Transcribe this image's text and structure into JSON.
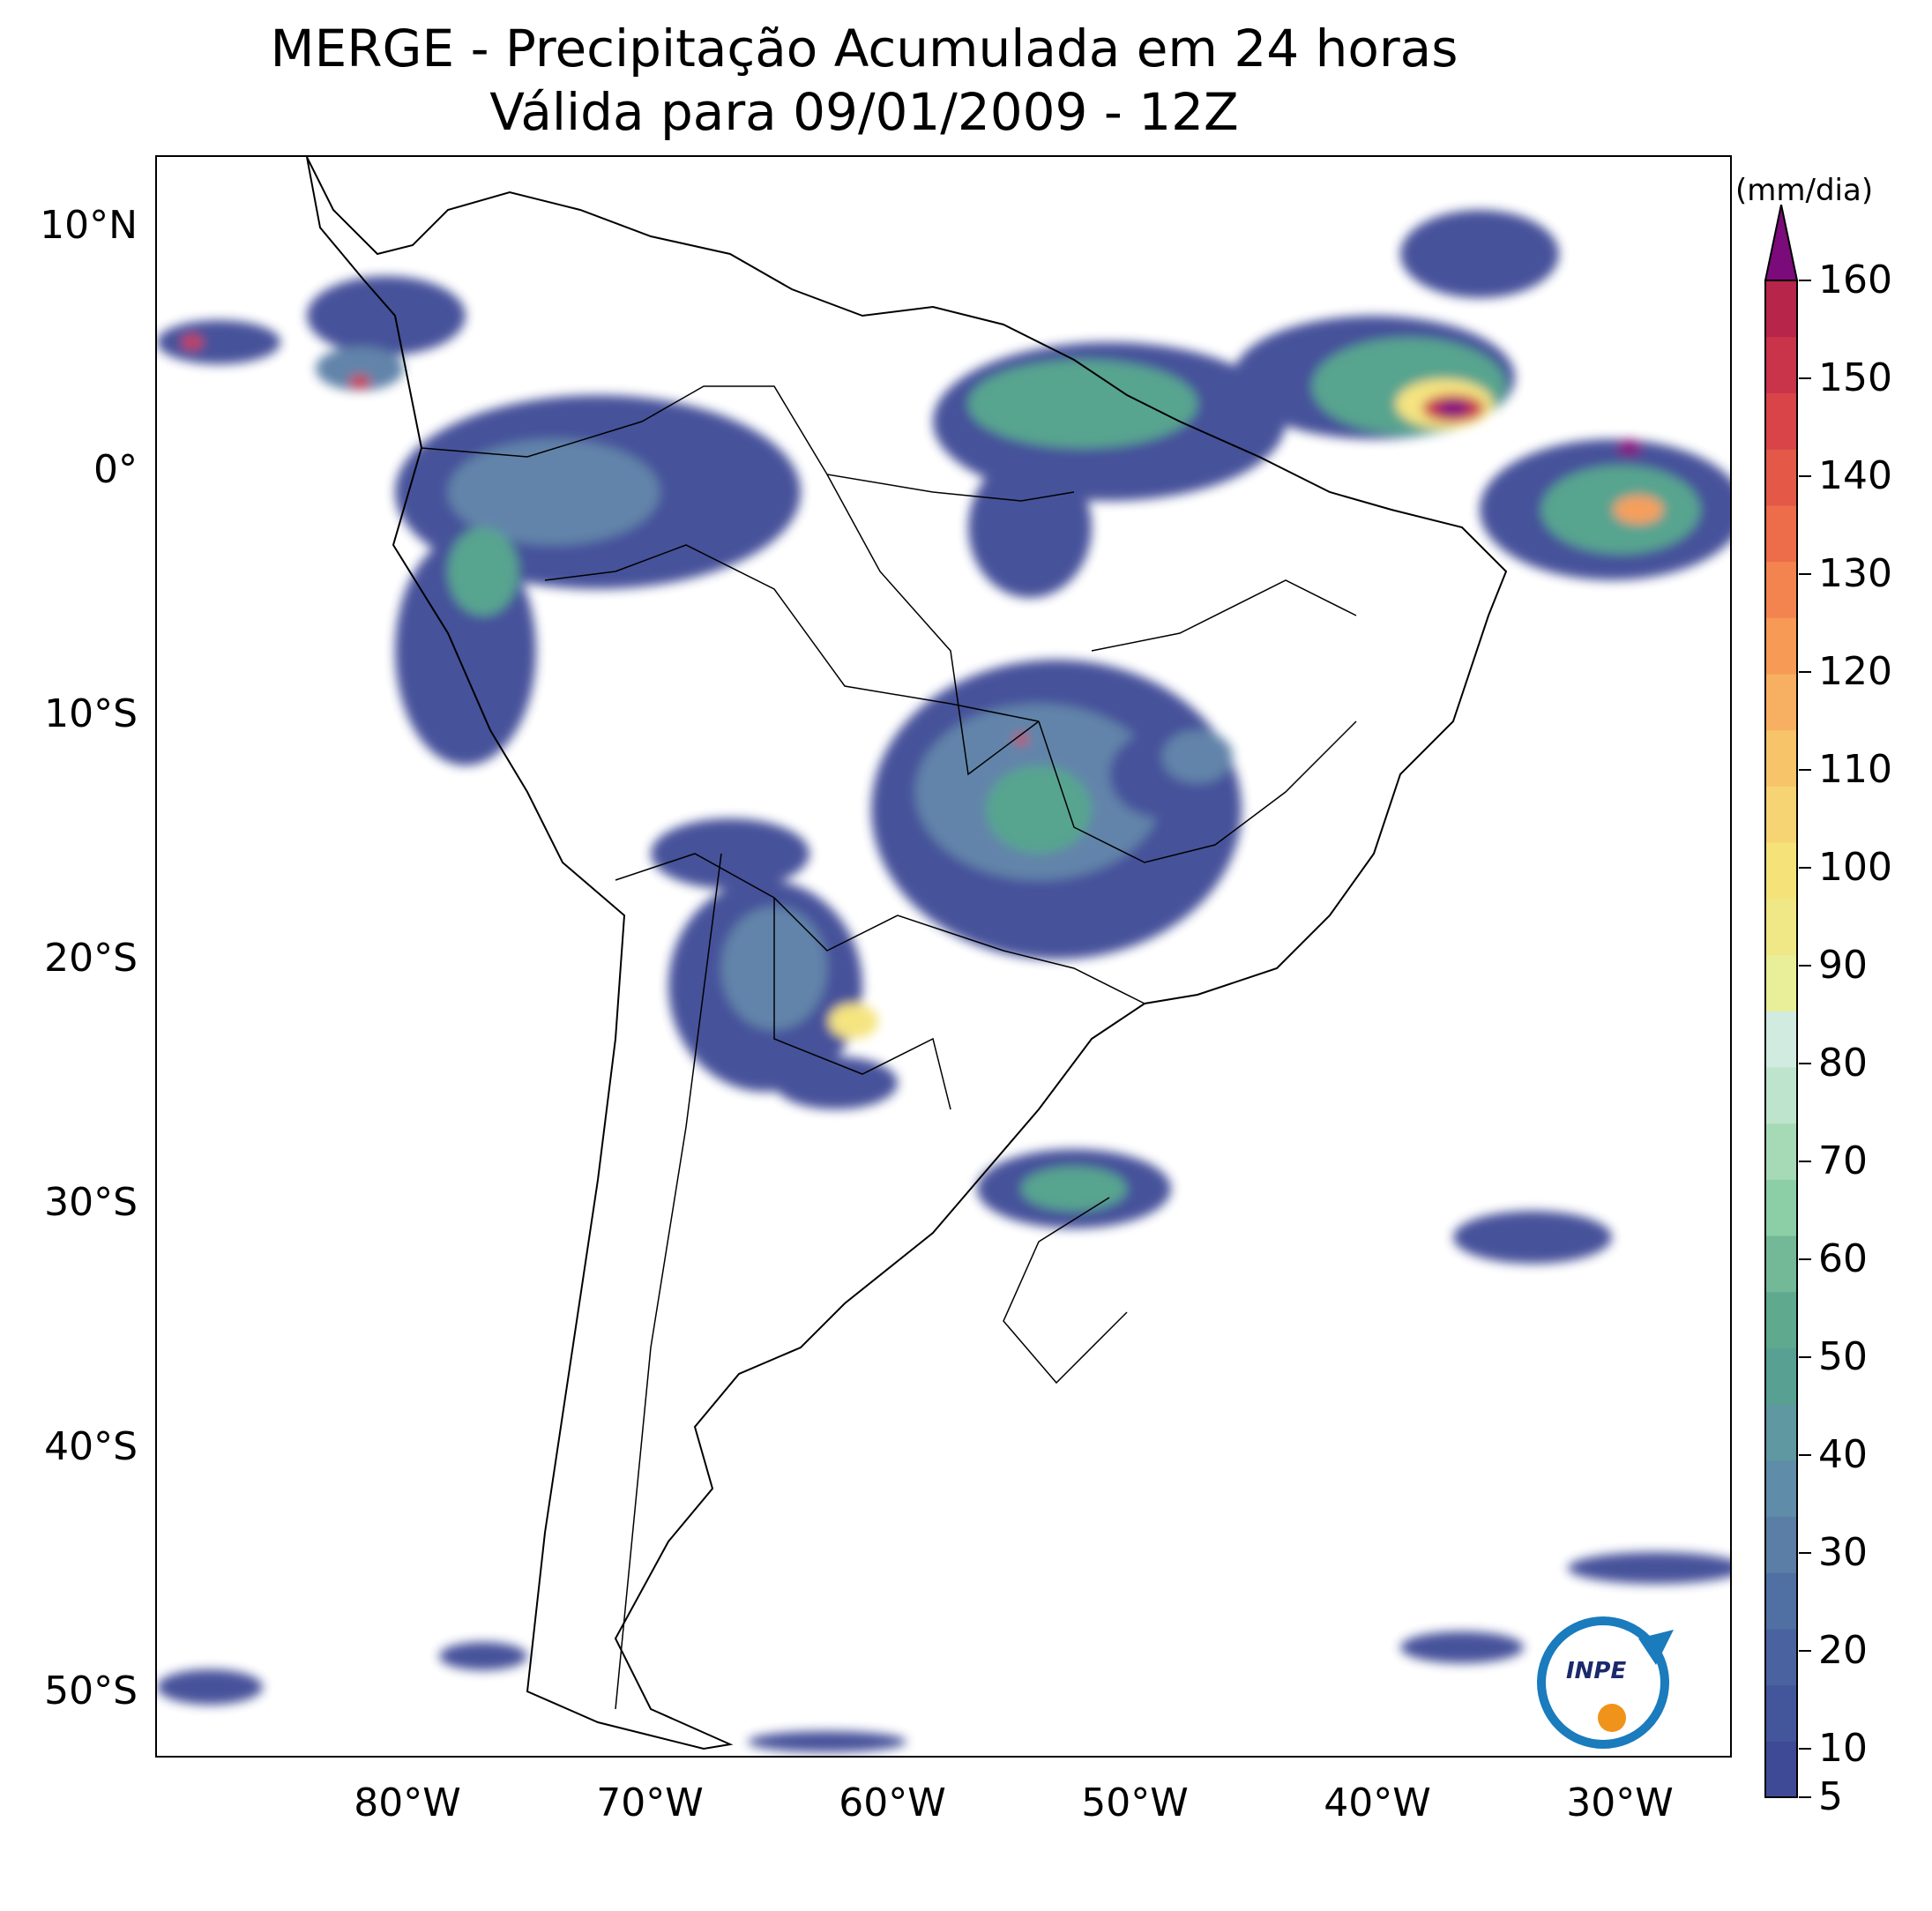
{
  "title": {
    "line1": "MERGE - Precipitação Acumulada em 24 horas",
    "line2": "Válida para 09/01/2009 - 12Z"
  },
  "map": {
    "lat_labels": [
      "10°N",
      "0°",
      "10°S",
      "20°S",
      "30°S",
      "40°S",
      "50°S"
    ],
    "lon_labels": [
      "80°W",
      "70°W",
      "60°W",
      "50°W",
      "40°W",
      "30°W"
    ],
    "lat_range": [
      -56,
      12.5
    ],
    "lon_range": [
      -90,
      -25
    ]
  },
  "colorbar": {
    "unit": "(mm/dia)",
    "labels": [
      "160",
      "150",
      "140",
      "130",
      "120",
      "110",
      "100",
      "90",
      "80",
      "70",
      "60",
      "50",
      "40",
      "30",
      "20",
      "10",
      "5"
    ],
    "colors": {
      "low": "#3e4a95",
      "mid_low": "#5a7ea6",
      "teal": "#4fa08a",
      "light_green": "#8ccfa6",
      "pale": "#dcefe8",
      "yellow": "#f5e37a",
      "orange": "#f69a55",
      "red": "#c9344a",
      "max": "#7b0a7a"
    }
  },
  "logo": {
    "text": "INPE",
    "colors": {
      "blue": "#1a7bbd",
      "orange": "#f0931a"
    }
  }
}
